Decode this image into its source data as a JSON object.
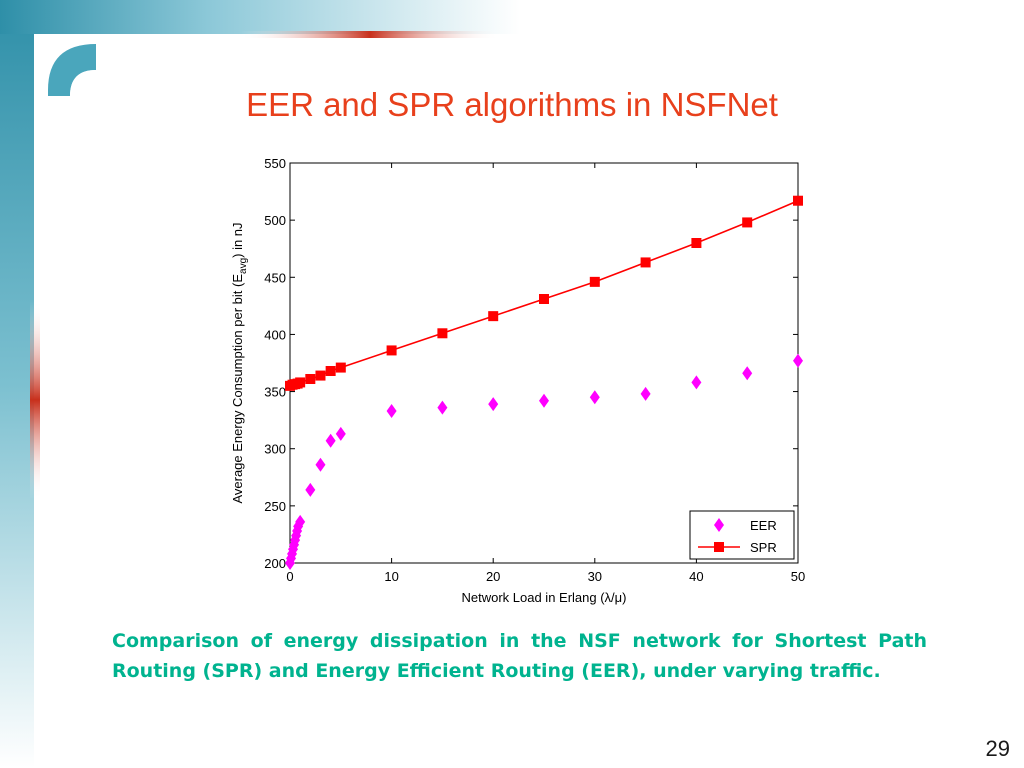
{
  "slide": {
    "title": "EER and SPR algorithms in NSFNet",
    "caption": "Comparison of energy dissipation in the NSF network for Shortest Path Routing (SPR) and Energy Efficient Routing (EER), under varying traffic.",
    "page_number": "29",
    "title_color": "#e8401c",
    "caption_color": "#00b38f",
    "accent_teal": "#2e8fa8",
    "accent_red": "#c8301c"
  },
  "chart_data": {
    "type": "scatter",
    "xlabel": "Network Load in Erlang (λ/μ)",
    "ylabel": "Average Energy Consumption per bit (E",
    "ylabel_sub": "avg",
    "ylabel_end": ") in nJ",
    "xlim": [
      0,
      50
    ],
    "ylim": [
      200,
      550
    ],
    "xticks": [
      0,
      10,
      20,
      30,
      40,
      50
    ],
    "yticks": [
      200,
      250,
      300,
      350,
      400,
      450,
      500,
      550
    ],
    "grid": false,
    "legend_position": "bottom-right",
    "series": [
      {
        "name": "EER",
        "color": "#ff00ff",
        "marker": "diamond",
        "line": false,
        "x": [
          0,
          0.1,
          0.2,
          0.3,
          0.4,
          0.5,
          0.6,
          0.7,
          0.8,
          1,
          2,
          3,
          4,
          5,
          10,
          15,
          20,
          25,
          30,
          35,
          40,
          45,
          50
        ],
        "y": [
          200,
          204,
          208,
          212,
          216,
          220,
          224,
          228,
          232,
          236,
          264,
          286,
          307,
          313,
          333,
          336,
          339,
          342,
          345,
          348,
          358,
          366,
          377
        ]
      },
      {
        "name": "SPR",
        "color": "#ff0000",
        "marker": "square",
        "line": true,
        "x": [
          0,
          0.25,
          0.5,
          0.75,
          1,
          2,
          3,
          4,
          5,
          10,
          15,
          20,
          25,
          30,
          35,
          40,
          45,
          50
        ],
        "y": [
          355,
          356,
          356.5,
          357,
          358,
          361,
          364,
          368,
          371,
          386,
          401,
          416,
          431,
          446,
          463,
          480,
          498,
          517
        ]
      }
    ]
  }
}
